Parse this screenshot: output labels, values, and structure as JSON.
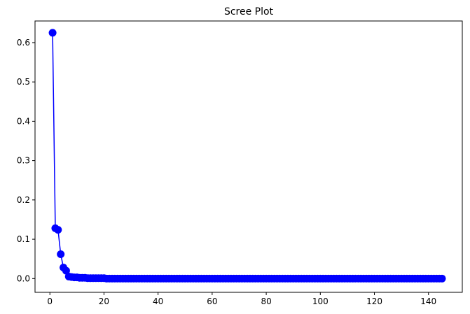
{
  "chart_data": {
    "type": "line",
    "title": "Scree Plot",
    "xlabel": "",
    "ylabel": "",
    "xlim": [
      -5.5,
      152.5
    ],
    "ylim": [
      -0.035,
      0.655
    ],
    "xticks": [
      0,
      20,
      40,
      60,
      80,
      100,
      120,
      140
    ],
    "yticks": [
      0.0,
      0.1,
      0.2,
      0.3,
      0.4,
      0.5,
      0.6
    ],
    "xtick_labels": [
      "0",
      "20",
      "40",
      "60",
      "80",
      "100",
      "120",
      "140"
    ],
    "ytick_labels": [
      "0.0",
      "0.1",
      "0.2",
      "0.3",
      "0.4",
      "0.5",
      "0.6"
    ],
    "grid": false,
    "legend": false,
    "series": [
      {
        "color": "#0000ff",
        "marker": "circle",
        "x_start": 1,
        "x_step": 1,
        "values": [
          0.625,
          0.128,
          0.124,
          0.062,
          0.028,
          0.02,
          0.005,
          0.004,
          0.003,
          0.003,
          0.002,
          0.002,
          0.002,
          0.001,
          0.001,
          0.001,
          0.001,
          0.001,
          0.001,
          0.001,
          0.0,
          0.0,
          0.0,
          0.0,
          0.0,
          0.0,
          0.0,
          0.0,
          0.0,
          0.0,
          0.0,
          0.0,
          0.0,
          0.0,
          0.0,
          0.0,
          0.0,
          0.0,
          0.0,
          0.0,
          0.0,
          0.0,
          0.0,
          0.0,
          0.0,
          0.0,
          0.0,
          0.0,
          0.0,
          0.0,
          0.0,
          0.0,
          0.0,
          0.0,
          0.0,
          0.0,
          0.0,
          0.0,
          0.0,
          0.0,
          0.0,
          0.0,
          0.0,
          0.0,
          0.0,
          0.0,
          0.0,
          0.0,
          0.0,
          0.0,
          0.0,
          0.0,
          0.0,
          0.0,
          0.0,
          0.0,
          0.0,
          0.0,
          0.0,
          0.0,
          0.0,
          0.0,
          0.0,
          0.0,
          0.0,
          0.0,
          0.0,
          0.0,
          0.0,
          0.0,
          0.0,
          0.0,
          0.0,
          0.0,
          0.0,
          0.0,
          0.0,
          0.0,
          0.0,
          0.0,
          0.0,
          0.0,
          0.0,
          0.0,
          0.0,
          0.0,
          0.0,
          0.0,
          0.0,
          0.0,
          0.0,
          0.0,
          0.0,
          0.0,
          0.0,
          0.0,
          0.0,
          0.0,
          0.0,
          0.0,
          0.0,
          0.0,
          0.0,
          0.0,
          0.0,
          0.0,
          0.0,
          0.0,
          0.0,
          0.0,
          0.0,
          0.0,
          0.0,
          0.0,
          0.0,
          0.0,
          0.0,
          0.0,
          0.0,
          0.0,
          0.0,
          0.0,
          0.0,
          0.0,
          0.0
        ]
      }
    ]
  }
}
